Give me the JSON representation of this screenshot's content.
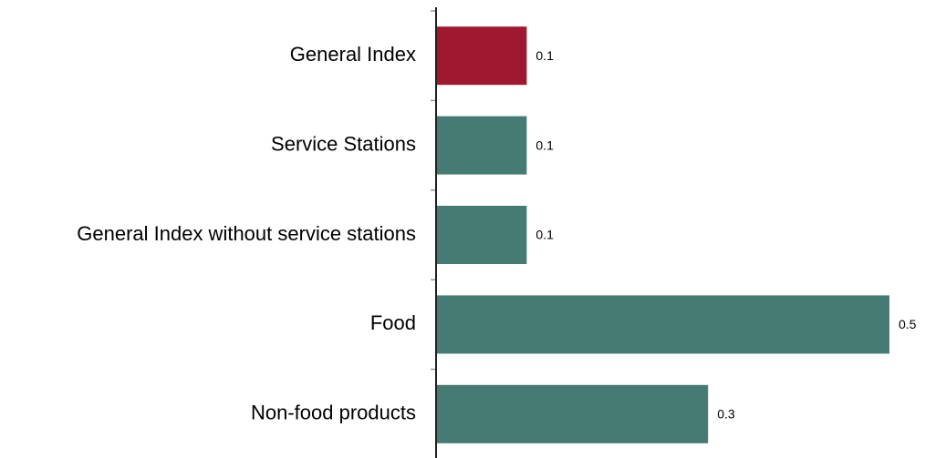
{
  "chart_data": {
    "type": "bar",
    "orientation": "horizontal",
    "categories": [
      "General Index",
      "Service Stations",
      "General Index without service stations",
      "Food",
      "Non-food products"
    ],
    "values": [
      0.1,
      0.1,
      0.1,
      0.5,
      0.3
    ],
    "colors": [
      "#a0182f",
      "#467b73",
      "#467b73",
      "#467b73",
      "#467b73"
    ],
    "xlim": [
      0,
      0.5
    ]
  }
}
